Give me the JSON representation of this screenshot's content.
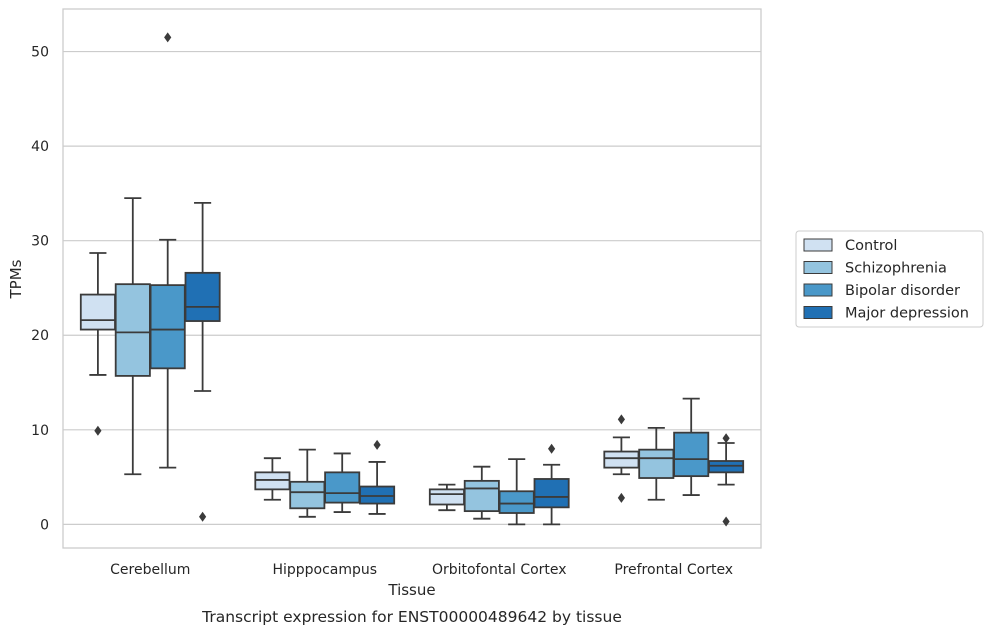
{
  "chart_data": {
    "type": "boxplot",
    "caption": "Transcript expression for ENST00000489642 by tissue",
    "xlabel": "Tissue",
    "ylabel": "TPMs",
    "ylim": [
      -2.5,
      54.5
    ],
    "yticks": [
      0,
      10,
      20,
      30,
      40,
      50
    ],
    "grid": true,
    "legend_position": "right",
    "categories": [
      "Cerebellum",
      "Hipppocampus",
      "Orbitofontal Cortex",
      "Prefrontal Cortex"
    ],
    "series": [
      {
        "name": "Control",
        "color": "#d0e1f2",
        "boxes": [
          {
            "whislo": 15.8,
            "q1": 20.6,
            "med": 21.6,
            "q3": 24.3,
            "whishi": 28.7,
            "fliers": [
              9.9
            ]
          },
          {
            "whislo": 2.6,
            "q1": 3.7,
            "med": 4.7,
            "q3": 5.5,
            "whishi": 7.0,
            "fliers": []
          },
          {
            "whislo": 1.5,
            "q1": 2.1,
            "med": 3.2,
            "q3": 3.7,
            "whishi": 4.2,
            "fliers": []
          },
          {
            "whislo": 5.3,
            "q1": 6.0,
            "med": 7.0,
            "q3": 7.7,
            "whishi": 9.2,
            "fliers": [
              2.8,
              11.1
            ]
          }
        ]
      },
      {
        "name": "Schizophrenia",
        "color": "#94c4df",
        "boxes": [
          {
            "whislo": 5.3,
            "q1": 15.7,
            "med": 20.3,
            "q3": 25.4,
            "whishi": 34.5,
            "fliers": []
          },
          {
            "whislo": 0.8,
            "q1": 1.7,
            "med": 3.4,
            "q3": 4.5,
            "whishi": 7.9,
            "fliers": []
          },
          {
            "whislo": 0.6,
            "q1": 1.4,
            "med": 3.8,
            "q3": 4.6,
            "whishi": 6.1,
            "fliers": []
          },
          {
            "whislo": 2.6,
            "q1": 4.9,
            "med": 7.0,
            "q3": 7.9,
            "whishi": 10.2,
            "fliers": []
          }
        ]
      },
      {
        "name": "Bipolar disorder",
        "color": "#4a98c9",
        "boxes": [
          {
            "whislo": 6.0,
            "q1": 16.5,
            "med": 20.6,
            "q3": 25.3,
            "whishi": 30.1,
            "fliers": [
              51.5
            ]
          },
          {
            "whislo": 1.3,
            "q1": 2.3,
            "med": 3.3,
            "q3": 5.5,
            "whishi": 7.5,
            "fliers": []
          },
          {
            "whislo": 0.0,
            "q1": 1.2,
            "med": 2.2,
            "q3": 3.5,
            "whishi": 6.9,
            "fliers": []
          },
          {
            "whislo": 3.1,
            "q1": 5.1,
            "med": 6.9,
            "q3": 9.7,
            "whishi": 13.3,
            "fliers": []
          }
        ]
      },
      {
        "name": "Major depression",
        "color": "#2070b4",
        "boxes": [
          {
            "whislo": 14.1,
            "q1": 21.5,
            "med": 23.0,
            "q3": 26.6,
            "whishi": 34.0,
            "fliers": [
              0.8
            ]
          },
          {
            "whislo": 1.1,
            "q1": 2.2,
            "med": 3.0,
            "q3": 4.0,
            "whishi": 6.6,
            "fliers": [
              8.4
            ]
          },
          {
            "whislo": 0.0,
            "q1": 1.8,
            "med": 2.9,
            "q3": 4.8,
            "whishi": 6.3,
            "fliers": [
              8.0
            ]
          },
          {
            "whislo": 4.2,
            "q1": 5.5,
            "med": 6.2,
            "q3": 6.7,
            "whishi": 8.6,
            "fliers": [
              0.3,
              9.1
            ]
          }
        ]
      }
    ]
  }
}
